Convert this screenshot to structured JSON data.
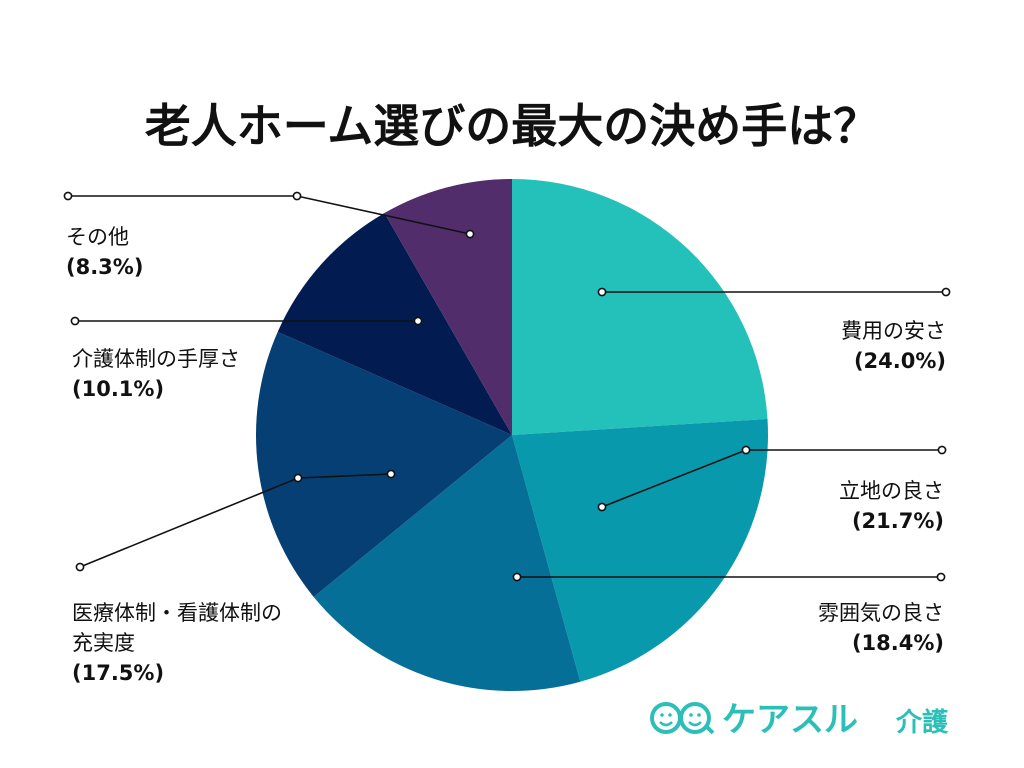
{
  "chart_data": {
    "type": "pie",
    "title": "老人ホーム選びの最大の決め手は？",
    "slices": [
      {
        "name": "費用の安さ",
        "pct_label": "(24.0%)",
        "value": 24.0,
        "color": "#24c1bb"
      },
      {
        "name": "立地の良さ",
        "pct_label": "(21.7%)",
        "value": 21.7,
        "color": "#0899ad"
      },
      {
        "name": "雰囲気の良さ",
        "pct_label": "(18.4%)",
        "value": 18.4,
        "color": "#066f97"
      },
      {
        "name": "医療体制・看護体制の充実度",
        "name_lines": [
          "医療体制・看護体制の",
          "充実度"
        ],
        "pct_label": "(17.5%)",
        "value": 17.5,
        "color": "#053f74"
      },
      {
        "name": "介護体制の手厚さ",
        "pct_label": "(10.1%)",
        "value": 10.1,
        "color": "#021c52"
      },
      {
        "name": "その他",
        "pct_label": "(8.3%)",
        "value": 8.3,
        "color": "#522d6c"
      }
    ],
    "leader_color": "#111111"
  },
  "brand": {
    "name": "ケアスル",
    "sub": "介護",
    "color": "#2bbfb8",
    "icon": "care-face-logo-icon"
  }
}
